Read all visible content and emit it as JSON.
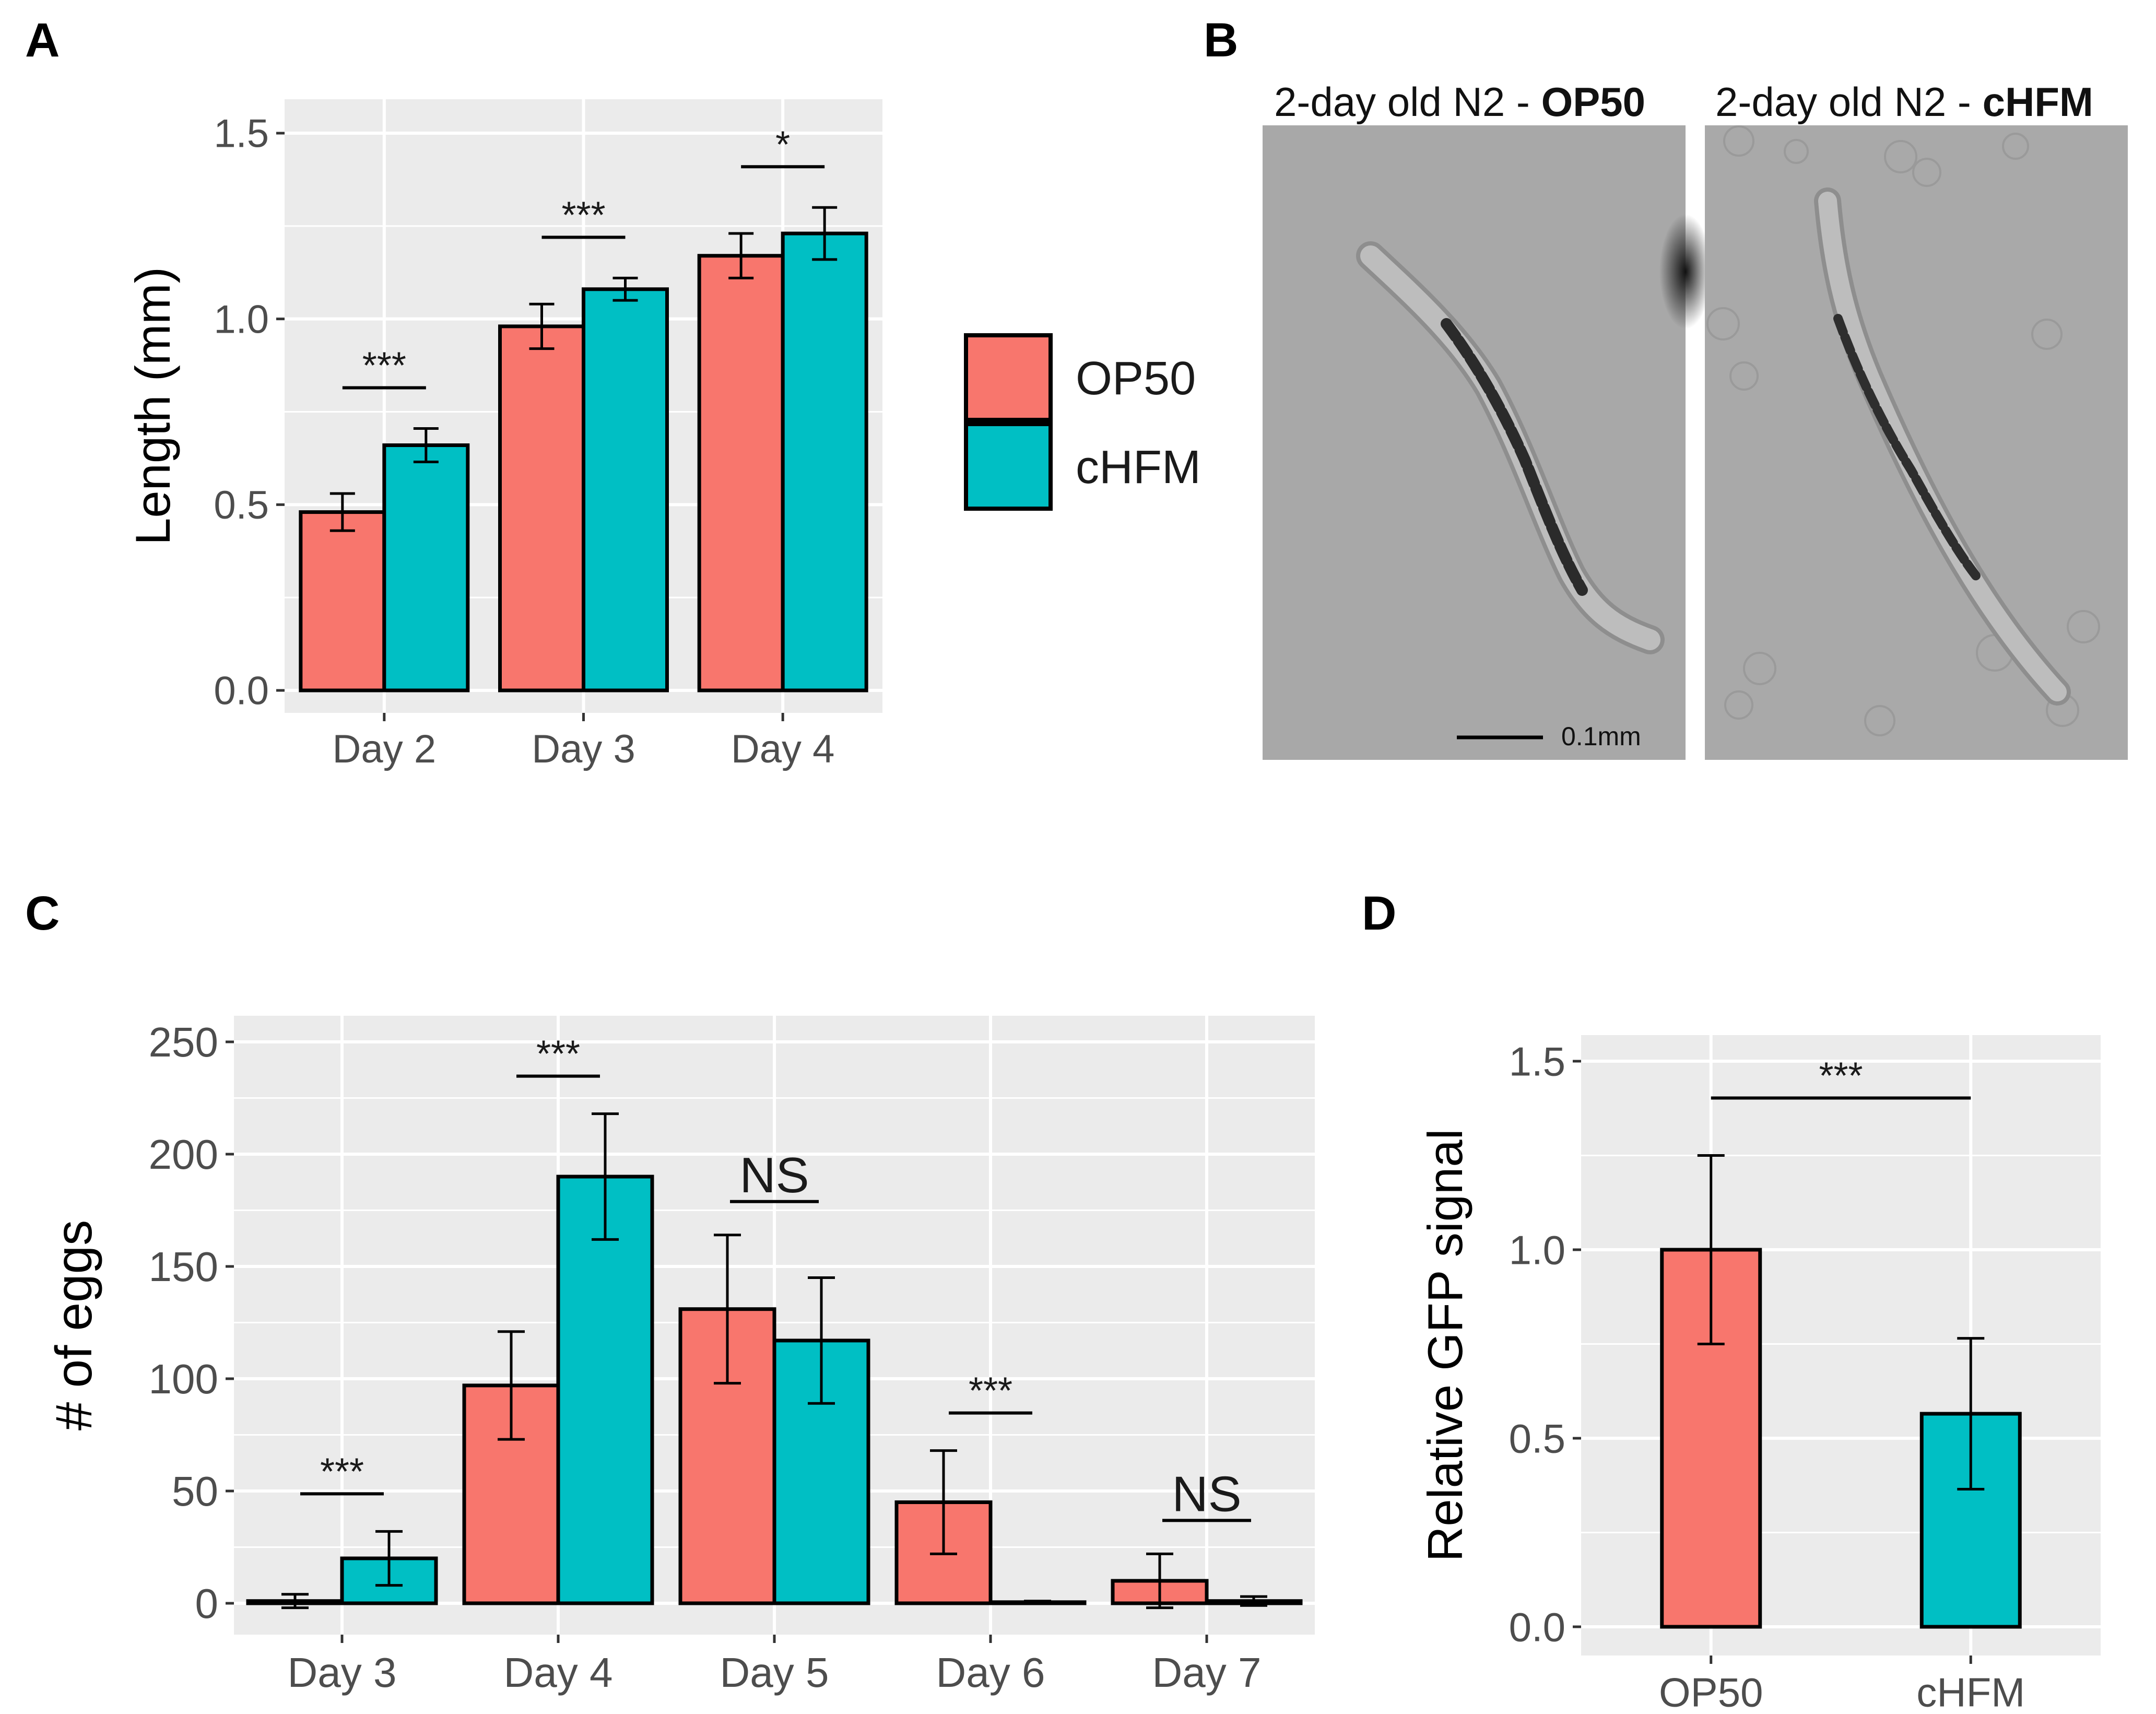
{
  "colors": {
    "op50": "#F8766D",
    "chfm": "#00BFC4",
    "panel_bg": "#EBEBEB",
    "grid": "#FFFFFF",
    "axis_text": "#4D4D4D",
    "photo_bg": "#A9A9A9"
  },
  "panel_labels": {
    "a": "A",
    "b": "B",
    "c": "C",
    "d": "D"
  },
  "legend": {
    "items": [
      {
        "label": "OP50",
        "color_key": "op50"
      },
      {
        "label": "cHFM",
        "color_key": "chfm"
      }
    ]
  },
  "panel_b": {
    "left_title_prefix": "2-day old N2 - ",
    "left_title_bold": "OP50",
    "right_title_prefix": "2-day old N2 - ",
    "right_title_bold": "cHFM",
    "scale_bar_label": "0.1mm"
  },
  "chart_data": [
    {
      "panel": "A",
      "type": "bar",
      "ylabel": "Length (mm)",
      "xlabel": "",
      "ylim": [
        0,
        1.5
      ],
      "yticks": [
        0.0,
        0.5,
        1.0,
        1.5
      ],
      "ytick_labels": [
        "0.0",
        "0.5",
        "1.0",
        "1.5"
      ],
      "categories": [
        "Day 2",
        "Day 3",
        "Day 4"
      ],
      "series": [
        {
          "name": "OP50",
          "values": [
            0.48,
            0.98,
            1.17
          ],
          "errors": [
            0.05,
            0.06,
            0.06
          ]
        },
        {
          "name": "cHFM",
          "values": [
            0.66,
            1.08,
            1.23
          ],
          "errors": [
            0.045,
            0.03,
            0.07
          ]
        }
      ],
      "significance": [
        "***",
        "***",
        "*"
      ],
      "legend": "right"
    },
    {
      "panel": "C",
      "type": "bar",
      "ylabel": "# of eggs",
      "xlabel": "",
      "ylim": [
        0,
        250
      ],
      "yticks": [
        0,
        50,
        100,
        150,
        200,
        250
      ],
      "ytick_labels": [
        "0",
        "50",
        "100",
        "150",
        "200",
        "250"
      ],
      "categories": [
        "Day 3",
        "Day 4",
        "Day 5",
        "Day 6",
        "Day 7"
      ],
      "series": [
        {
          "name": "OP50",
          "values": [
            1,
            97,
            131,
            45,
            10
          ],
          "errors": [
            3,
            24,
            33,
            23,
            12
          ]
        },
        {
          "name": "cHFM",
          "values": [
            20,
            190,
            117,
            0.5,
            1
          ],
          "errors": [
            12,
            28,
            28,
            0.5,
            2
          ]
        }
      ],
      "significance": [
        "***",
        "***",
        "NS",
        "***",
        "NS"
      ]
    },
    {
      "panel": "D",
      "type": "bar",
      "ylabel": "Relative GFP signal",
      "xlabel": "",
      "ylim": [
        0,
        1.5
      ],
      "yticks": [
        0.0,
        0.5,
        1.0,
        1.5
      ],
      "ytick_labels": [
        "0.0",
        "0.5",
        "1.0",
        "1.5"
      ],
      "categories": [
        "OP50",
        "cHFM"
      ],
      "values": [
        1.0,
        0.565
      ],
      "errors": [
        0.25,
        0.2
      ],
      "significance": "***"
    }
  ]
}
